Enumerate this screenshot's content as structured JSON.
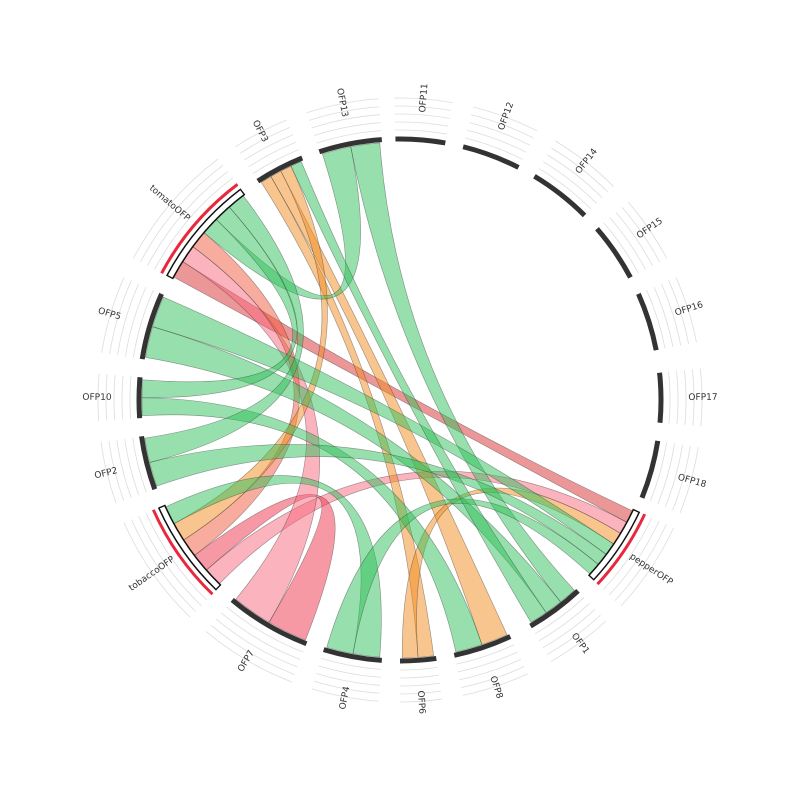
{
  "nodes": [
    {
      "label": "OFP11"
    },
    {
      "label": "OFP12"
    },
    {
      "label": "OFP14"
    },
    {
      "label": "OFP15"
    },
    {
      "label": "OFP16"
    },
    {
      "label": "OFP17"
    },
    {
      "label": "OFP18"
    },
    {
      "label": "pepperOFP"
    },
    {
      "label": "OFP1"
    },
    {
      "label": "OFP8"
    },
    {
      "label": "OFP6"
    },
    {
      "label": "OFP4"
    },
    {
      "label": "OFP7"
    },
    {
      "label": "tobaccoOFP"
    },
    {
      "label": "OFP2"
    },
    {
      "label": "OFP10"
    },
    {
      "label": "OFP5"
    },
    {
      "label": "tomatoOFP"
    },
    {
      "label": "OFP3"
    },
    {
      "label": "OFP13"
    }
  ],
  "links": [
    {
      "from": 17,
      "to": 7,
      "color": "#d9302f"
    },
    {
      "from": 13,
      "to": 7,
      "color": "#f7687d"
    },
    {
      "from": 13,
      "to": 12,
      "color": "#f0324b"
    },
    {
      "from": 17,
      "to": 12,
      "color": "#f7687d"
    },
    {
      "from": 17,
      "to": 13,
      "color": "#f25a3c"
    },
    {
      "from": 18,
      "to": 10,
      "color": "#f28c1e"
    },
    {
      "from": 18,
      "to": 9,
      "color": "#f28c1e"
    },
    {
      "from": 18,
      "to": 13,
      "color": "#f28c1e"
    },
    {
      "from": 7,
      "to": 10,
      "color": "#f28c1e"
    },
    {
      "from": 19,
      "to": 17,
      "color": "#2fbf5a"
    },
    {
      "from": 19,
      "to": 8,
      "color": "#2fbf5a"
    },
    {
      "from": 16,
      "to": 8,
      "color": "#2fbf5a"
    },
    {
      "from": 16,
      "to": 7,
      "color": "#2fbf5a"
    },
    {
      "from": 15,
      "to": 9,
      "color": "#2fbf5a"
    },
    {
      "from": 15,
      "to": 17,
      "color": "#2fbf5a"
    },
    {
      "from": 14,
      "to": 7,
      "color": "#2fbf5a"
    },
    {
      "from": 14,
      "to": 17,
      "color": "#2fbf5a"
    },
    {
      "from": 11,
      "to": 13,
      "color": "#2fbf5a"
    },
    {
      "from": 11,
      "to": 7,
      "color": "#2fbf5a"
    },
    {
      "from": 18,
      "to": 8,
      "color": "#2fbf5a"
    }
  ]
}
